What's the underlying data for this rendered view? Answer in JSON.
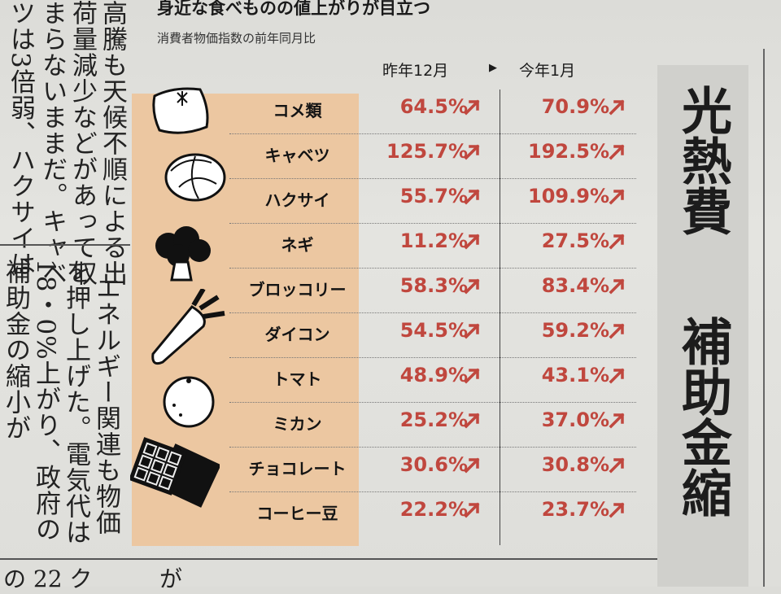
{
  "article_left": {
    "columns": [
      "高騰も天候不順による出",
      "荷量減少などがあって収",
      "まらないままだ。キャベ",
      "ツは3倍弱、ハクサイは"
    ],
    "columns2": [
      "エネルギー関連も物価",
      "を押し上げた。電気代は",
      "18・0%上がり、政府の",
      "補助金の縮小が"
    ]
  },
  "chart": {
    "title": "身近な食べものの値上がりが目立つ",
    "subtitle": "消費者物価指数の前年同月比",
    "col1": "昨年12月",
    "arrow": "▶",
    "col2": "今年1月",
    "rows": [
      {
        "label": "コメ類",
        "v1": "64.5%",
        "v2": "70.9%",
        "icon": "rice-bag-icon"
      },
      {
        "label": "キャベツ",
        "v1": "125.7%",
        "v2": "192.5%",
        "icon": "cabbage-icon"
      },
      {
        "label": "ハクサイ",
        "v1": "55.7%",
        "v2": "109.9%",
        "icon": "napa-cabbage-icon"
      },
      {
        "label": "ネギ",
        "v1": "11.2%",
        "v2": "27.5%",
        "icon": "leek-icon"
      },
      {
        "label": "ブロッコリー",
        "v1": "58.3%",
        "v2": "83.4%",
        "icon": "broccoli-icon"
      },
      {
        "label": "ダイコン",
        "v1": "54.5%",
        "v2": "59.2%",
        "icon": "daikon-icon"
      },
      {
        "label": "トマト",
        "v1": "48.9%",
        "v2": "43.1%",
        "icon": "tomato-icon"
      },
      {
        "label": "ミカン",
        "v1": "25.2%",
        "v2": "37.0%",
        "icon": "mandarin-icon"
      },
      {
        "label": "チョコレート",
        "v1": "30.6%",
        "v2": "30.8%",
        "icon": "chocolate-icon"
      },
      {
        "label": "コーヒー豆",
        "v1": "22.2%",
        "v2": "23.7%",
        "icon": "coffee-bean-icon"
      }
    ],
    "accent_color": "#c0473e",
    "panel_color": "#ecc7a1"
  },
  "headline": {
    "line1": "光熱費",
    "line2": "補助金縮"
  },
  "bottom": {
    "left": "の 22 ク",
    "mid": "が"
  }
}
